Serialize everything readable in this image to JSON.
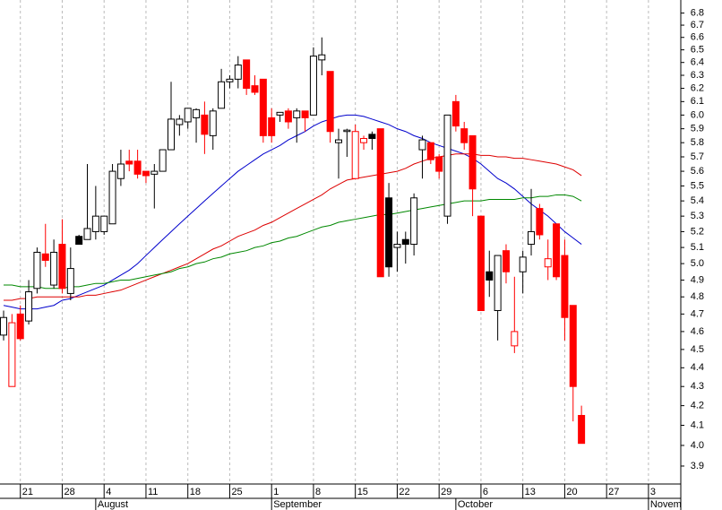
{
  "chart_data": {
    "type": "candlestick",
    "log_scale": true,
    "grid": true,
    "ylim": [
      3.815,
      6.91
    ],
    "yticks": [
      3.9,
      {
        "value": 4,
        "label": "4.0"
      },
      4.1,
      4.2,
      4.3,
      4.4,
      4.5,
      4.6,
      4.7,
      4.8,
      4.9,
      {
        "value": 5,
        "label": "5.0"
      },
      5.1,
      5.2,
      5.3,
      5.4,
      5.5,
      5.6,
      5.7,
      5.8,
      5.9,
      {
        "value": 6,
        "label": "6.0"
      },
      6.1,
      6.2,
      6.3,
      6.4,
      6.5,
      6.6,
      6.7,
      6.8
    ],
    "xlim": [
      -0.43,
      80.86
    ],
    "xticks": [
      {
        "value": 2,
        "label": "21"
      },
      {
        "value": 7,
        "label": "28"
      },
      {
        "value": 12,
        "label": "4"
      },
      {
        "value": 17,
        "label": "11"
      },
      {
        "value": 22,
        "label": "18"
      },
      {
        "value": 27,
        "label": "25"
      },
      {
        "value": 32,
        "label": "1"
      },
      {
        "value": 37,
        "label": "8"
      },
      {
        "value": 42,
        "label": "15"
      },
      {
        "value": 47,
        "label": "22"
      },
      {
        "value": 52,
        "label": "29"
      },
      {
        "value": 57,
        "label": "6"
      },
      {
        "value": 62,
        "label": "13"
      },
      {
        "value": 67,
        "label": "20"
      },
      {
        "value": 72,
        "label": "27"
      },
      {
        "value": 77,
        "label": "3"
      }
    ],
    "month_ticks": [
      {
        "value": 11,
        "label": "August"
      },
      {
        "value": 32,
        "label": "September"
      },
      {
        "value": 54,
        "label": "October"
      },
      {
        "value": 77,
        "label": "November"
      }
    ],
    "categories": [
      null,
      null,
      null,
      null,
      null,
      null,
      null,
      null,
      null,
      null,
      null,
      null,
      null,
      null,
      null,
      null,
      null,
      null,
      null,
      null,
      null,
      null,
      null,
      null,
      null,
      null,
      null,
      null,
      null,
      null,
      null,
      null,
      null,
      null,
      null,
      null,
      null,
      null,
      null,
      null,
      null,
      null,
      null,
      null,
      null,
      null,
      null,
      null,
      null,
      null,
      null,
      null,
      null,
      null,
      null,
      null,
      null,
      null,
      null,
      null,
      null,
      null,
      null,
      null,
      null,
      null,
      null,
      null,
      null,
      null
    ],
    "open": [
      4.58,
      4.3,
      4.7,
      4.66,
      4.85,
      5.06,
      4.87,
      5.12,
      4.82,
      5.12,
      5.15,
      5.2,
      5.2,
      5.25,
      5.55,
      5.67,
      5.67,
      5.6,
      5.58,
      5.6,
      5.75,
      5.93,
      5.95,
      5.98,
      6.0,
      5.85,
      6.05,
      6.25,
      6.27,
      6.42,
      6.22,
      6.27,
      5.98,
      6.0,
      6.03,
      5.98,
      6.03,
      6.0,
      6.42,
      6.33,
      5.8,
      5.88,
      5.55,
      5.8,
      5.83,
      5.9,
      5.42,
      5.1,
      5.12,
      5.12,
      5.75,
      5.8,
      5.7,
      5.3,
      6.1,
      5.9,
      5.85,
      5.3,
      4.9,
      4.72,
      5.08,
      4.52,
      4.95,
      5.12,
      5.35,
      4.98,
      5.25,
      5.05,
      4.75,
      4.15
    ],
    "high": [
      4.72,
      4.7,
      4.75,
      4.9,
      5.1,
      5.25,
      5.15,
      5.28,
      5.1,
      5.18,
      5.65,
      5.5,
      5.3,
      5.65,
      5.75,
      5.75,
      5.75,
      5.6,
      5.65,
      5.75,
      6.25,
      6.0,
      6.05,
      6.05,
      6.1,
      6.05,
      6.35,
      6.3,
      6.45,
      6.42,
      6.3,
      6.27,
      6.05,
      6.02,
      6.05,
      6.05,
      6.03,
      6.52,
      6.6,
      6.33,
      5.9,
      5.9,
      5.93,
      5.85,
      5.88,
      5.9,
      5.52,
      5.2,
      5.2,
      5.45,
      5.85,
      5.8,
      5.72,
      6.0,
      6.15,
      5.95,
      5.85,
      5.3,
      5.08,
      5.05,
      5.12,
      4.92,
      5.08,
      5.48,
      5.38,
      5.15,
      5.25,
      5.15,
      4.75,
      4.2
    ],
    "low": [
      4.55,
      4.3,
      4.55,
      4.64,
      4.82,
      4.98,
      4.85,
      4.82,
      4.78,
      5.12,
      5.15,
      5.15,
      5.18,
      5.25,
      5.5,
      5.6,
      5.55,
      5.52,
      5.35,
      5.6,
      5.75,
      5.85,
      5.9,
      5.8,
      5.72,
      5.75,
      6.05,
      6.2,
      6.2,
      6.15,
      6.15,
      5.8,
      5.8,
      5.95,
      5.9,
      5.8,
      5.88,
      6.0,
      6.3,
      5.8,
      5.55,
      5.7,
      5.55,
      5.75,
      5.75,
      4.92,
      4.92,
      4.95,
      5.0,
      5.05,
      5.55,
      5.65,
      5.55,
      5.25,
      5.88,
      5.75,
      5.3,
      4.72,
      4.8,
      4.55,
      4.88,
      4.48,
      4.82,
      5.05,
      5.15,
      4.9,
      4.9,
      4.55,
      4.12,
      4.01
    ],
    "close": [
      4.68,
      4.65,
      4.56,
      4.83,
      5.07,
      5.02,
      5.07,
      4.85,
      4.97,
      5.17,
      5.22,
      5.3,
      5.3,
      5.6,
      5.65,
      5.65,
      5.58,
      5.57,
      5.6,
      5.75,
      5.97,
      5.97,
      6.05,
      6.04,
      5.86,
      6.03,
      6.25,
      6.27,
      6.38,
      6.2,
      6.17,
      5.85,
      5.85,
      6.02,
      5.95,
      6.03,
      5.98,
      6.45,
      6.46,
      5.88,
      5.82,
      5.89,
      5.88,
      5.83,
      5.86,
      4.92,
      4.98,
      5.12,
      5.15,
      5.42,
      5.82,
      5.68,
      5.6,
      6.0,
      5.92,
      5.8,
      5.48,
      4.72,
      4.95,
      5.05,
      4.95,
      4.6,
      5.04,
      5.2,
      5.18,
      5.03,
      4.92,
      4.68,
      4.3,
      4.01
    ],
    "styles": [
      "white",
      "hollow-red",
      "red",
      "white",
      "white",
      "red",
      "white",
      "red",
      "white",
      "black",
      "white",
      "white",
      "white",
      "white",
      "white",
      "red",
      "red",
      "red",
      "white",
      "white",
      "white",
      "white",
      "white",
      "white",
      "red",
      "white",
      "white",
      "white",
      "white",
      "red",
      "red",
      "red",
      "red",
      "white",
      "red",
      "white",
      "red",
      "white",
      "white",
      "red",
      "white",
      "white",
      "hollow-red",
      "hollow-red",
      "black",
      "red",
      "black",
      "white",
      "black",
      "white",
      "white",
      "red",
      "red",
      "white",
      "red",
      "red",
      "red",
      "red",
      "black",
      "white",
      "red",
      "hollow-red",
      "white",
      "white",
      "red",
      "hollow-red",
      "red",
      "red",
      "red",
      "red"
    ],
    "lines": [
      {
        "color": "#0000cc",
        "values": [
          4.75,
          4.74,
          4.73,
          4.73,
          4.73,
          4.74,
          4.75,
          4.78,
          4.79,
          4.81,
          4.83,
          4.85,
          4.87,
          4.9,
          4.93,
          4.96,
          5.0,
          5.05,
          5.1,
          5.15,
          5.2,
          5.25,
          5.3,
          5.35,
          5.4,
          5.45,
          5.5,
          5.55,
          5.6,
          5.64,
          5.68,
          5.72,
          5.75,
          5.78,
          5.82,
          5.85,
          5.88,
          5.92,
          5.95,
          5.97,
          5.99,
          6.0,
          6.0,
          5.99,
          5.97,
          5.95,
          5.93,
          5.9,
          5.88,
          5.85,
          5.83,
          5.8,
          5.78,
          5.76,
          5.74,
          5.72,
          5.69,
          5.65,
          5.6,
          5.55,
          5.52,
          5.48,
          5.43,
          5.38,
          5.34,
          5.3,
          5.25,
          5.2,
          5.16,
          5.12
        ]
      },
      {
        "color": "#dd0000",
        "values": [
          4.78,
          4.78,
          4.79,
          4.79,
          4.8,
          4.8,
          4.8,
          4.8,
          4.8,
          4.8,
          4.81,
          4.81,
          4.82,
          4.83,
          4.84,
          4.86,
          4.88,
          4.9,
          4.92,
          4.94,
          4.96,
          4.98,
          5.0,
          5.03,
          5.06,
          5.09,
          5.11,
          5.14,
          5.17,
          5.19,
          5.21,
          5.24,
          5.26,
          5.29,
          5.32,
          5.35,
          5.38,
          5.41,
          5.44,
          5.48,
          5.51,
          5.54,
          5.55,
          5.56,
          5.57,
          5.58,
          5.59,
          5.6,
          5.62,
          5.65,
          5.67,
          5.69,
          5.7,
          5.71,
          5.72,
          5.72,
          5.72,
          5.71,
          5.71,
          5.7,
          5.7,
          5.69,
          5.69,
          5.68,
          5.67,
          5.66,
          5.65,
          5.63,
          5.61,
          5.57
        ]
      },
      {
        "color": "#008800",
        "values": [
          4.87,
          4.87,
          4.86,
          4.86,
          4.86,
          4.85,
          4.85,
          4.85,
          4.86,
          4.86,
          4.87,
          4.88,
          4.88,
          4.89,
          4.9,
          4.9,
          4.91,
          4.92,
          4.93,
          4.94,
          4.95,
          4.97,
          4.98,
          5.0,
          5.01,
          5.03,
          5.04,
          5.06,
          5.07,
          5.08,
          5.1,
          5.11,
          5.13,
          5.14,
          5.16,
          5.17,
          5.19,
          5.21,
          5.23,
          5.24,
          5.26,
          5.27,
          5.28,
          5.29,
          5.3,
          5.31,
          5.31,
          5.32,
          5.33,
          5.34,
          5.35,
          5.36,
          5.37,
          5.38,
          5.39,
          5.4,
          5.4,
          5.4,
          5.41,
          5.41,
          5.41,
          5.41,
          5.42,
          5.42,
          5.43,
          5.43,
          5.44,
          5.44,
          5.43,
          5.4
        ]
      }
    ]
  }
}
